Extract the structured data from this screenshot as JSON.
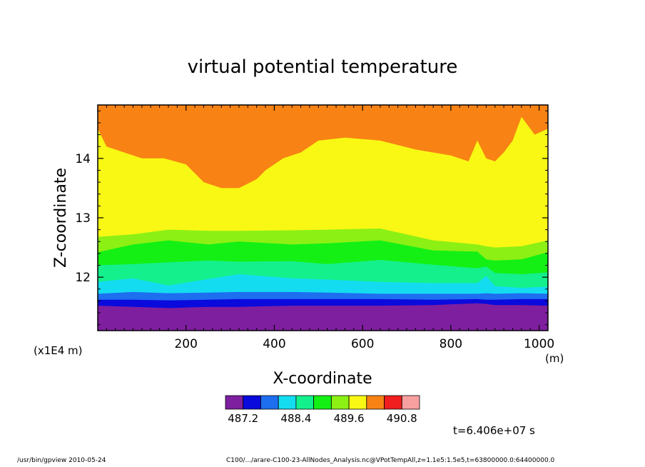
{
  "footer": {
    "left": "/usr/bin/gpview   2010-05-24",
    "right": "C100/.../arare-C100-23-AllNodes_Analysis.nc@VPotTempAll,z=1.1e5:1.5e5,t=63800000.0:64400000.0"
  },
  "time_label": "t=6.406e+07 s",
  "chart_data": {
    "type": "heatmap",
    "title": "virtual potential temperature",
    "xlabel": "X-coordinate",
    "ylabel": "Z-coordinate",
    "x_unit": "(m)",
    "y_unit": "(x1E4 m)",
    "xlim": [
      0,
      1020
    ],
    "ylim": [
      11.1,
      14.9
    ],
    "xticks": [
      "200",
      "400",
      "600",
      "800",
      "1000"
    ],
    "yticks": [
      "12",
      "13",
      "14"
    ],
    "colorbar": {
      "colors": [
        "#7e1fa0",
        "#0a0adc",
        "#1e6ef0",
        "#14dcf0",
        "#14f08c",
        "#14f014",
        "#8cf014",
        "#f8f814",
        "#f88214",
        "#f01e1e",
        "#f8a0a0"
      ],
      "tick_labels": [
        "487.2",
        "488.4",
        "489.6",
        "490.8"
      ]
    },
    "layers": [
      {
        "color": "#0a0adc",
        "boundary": [
          [
            0,
            11.52
          ],
          [
            80,
            11.5
          ],
          [
            160,
            11.48
          ],
          [
            250,
            11.5
          ],
          [
            320,
            11.5
          ],
          [
            440,
            11.52
          ],
          [
            520,
            11.52
          ],
          [
            640,
            11.52
          ],
          [
            760,
            11.53
          ],
          [
            860,
            11.56
          ],
          [
            880,
            11.55
          ],
          [
            900,
            11.53
          ],
          [
            960,
            11.53
          ],
          [
            1020,
            11.52
          ]
        ]
      },
      {
        "color": "#1e6ef0",
        "boundary": [
          [
            0,
            11.62
          ],
          [
            80,
            11.62
          ],
          [
            160,
            11.61
          ],
          [
            250,
            11.62
          ],
          [
            320,
            11.63
          ],
          [
            440,
            11.63
          ],
          [
            520,
            11.63
          ],
          [
            640,
            11.63
          ],
          [
            760,
            11.62
          ],
          [
            860,
            11.63
          ],
          [
            880,
            11.62
          ],
          [
            900,
            11.62
          ],
          [
            960,
            11.63
          ],
          [
            1020,
            11.63
          ]
        ]
      },
      {
        "color": "#14dcf0",
        "boundary": [
          [
            0,
            11.72
          ],
          [
            80,
            11.75
          ],
          [
            160,
            11.73
          ],
          [
            250,
            11.74
          ],
          [
            320,
            11.75
          ],
          [
            440,
            11.75
          ],
          [
            520,
            11.74
          ],
          [
            640,
            11.72
          ],
          [
            760,
            11.72
          ],
          [
            860,
            11.72
          ],
          [
            880,
            11.73
          ],
          [
            900,
            11.72
          ],
          [
            960,
            11.73
          ],
          [
            1020,
            11.72
          ]
        ]
      },
      {
        "color": "#14f08c",
        "boundary": [
          [
            0,
            11.92
          ],
          [
            80,
            11.98
          ],
          [
            160,
            11.86
          ],
          [
            250,
            11.97
          ],
          [
            320,
            12.05
          ],
          [
            440,
            11.98
          ],
          [
            520,
            11.96
          ],
          [
            640,
            11.92
          ],
          [
            760,
            11.9
          ],
          [
            860,
            11.9
          ],
          [
            880,
            12.02
          ],
          [
            900,
            11.85
          ],
          [
            960,
            11.82
          ],
          [
            1020,
            11.84
          ]
        ]
      },
      {
        "color": "#14f014",
        "boundary": [
          [
            0,
            12.2
          ],
          [
            80,
            12.22
          ],
          [
            160,
            12.25
          ],
          [
            250,
            12.28
          ],
          [
            320,
            12.26
          ],
          [
            440,
            12.27
          ],
          [
            520,
            12.22
          ],
          [
            640,
            12.29
          ],
          [
            760,
            12.21
          ],
          [
            860,
            12.15
          ],
          [
            880,
            12.18
          ],
          [
            900,
            12.07
          ],
          [
            960,
            12.05
          ],
          [
            1020,
            12.08
          ]
        ]
      },
      {
        "color": "#8cf014",
        "boundary": [
          [
            0,
            12.42
          ],
          [
            80,
            12.55
          ],
          [
            160,
            12.62
          ],
          [
            250,
            12.55
          ],
          [
            320,
            12.6
          ],
          [
            440,
            12.55
          ],
          [
            520,
            12.57
          ],
          [
            640,
            12.62
          ],
          [
            760,
            12.45
          ],
          [
            860,
            12.43
          ],
          [
            880,
            12.3
          ],
          [
            900,
            12.28
          ],
          [
            960,
            12.3
          ],
          [
            1020,
            12.42
          ]
        ]
      },
      {
        "color": "#f8f814",
        "boundary": [
          [
            0,
            12.68
          ],
          [
            80,
            12.72
          ],
          [
            160,
            12.8
          ],
          [
            250,
            12.78
          ],
          [
            320,
            12.78
          ],
          [
            440,
            12.79
          ],
          [
            520,
            12.8
          ],
          [
            640,
            12.82
          ],
          [
            760,
            12.62
          ],
          [
            860,
            12.55
          ],
          [
            880,
            12.52
          ],
          [
            900,
            12.5
          ],
          [
            960,
            12.52
          ],
          [
            1020,
            12.62
          ]
        ]
      },
      {
        "color": "#f88214",
        "boundary": [
          [
            0,
            14.5
          ],
          [
            20,
            14.2
          ],
          [
            60,
            14.1
          ],
          [
            100,
            14.0
          ],
          [
            150,
            14.0
          ],
          [
            200,
            13.9
          ],
          [
            240,
            13.6
          ],
          [
            280,
            13.5
          ],
          [
            320,
            13.5
          ],
          [
            360,
            13.65
          ],
          [
            380,
            13.8
          ],
          [
            420,
            14.0
          ],
          [
            460,
            14.1
          ],
          [
            500,
            14.3
          ],
          [
            560,
            14.35
          ],
          [
            640,
            14.3
          ],
          [
            720,
            14.15
          ],
          [
            800,
            14.05
          ],
          [
            840,
            13.95
          ],
          [
            860,
            14.3
          ],
          [
            880,
            14.0
          ],
          [
            900,
            13.95
          ],
          [
            920,
            14.1
          ],
          [
            940,
            14.3
          ],
          [
            960,
            14.7
          ],
          [
            990,
            14.4
          ],
          [
            1020,
            14.5
          ]
        ]
      }
    ]
  }
}
